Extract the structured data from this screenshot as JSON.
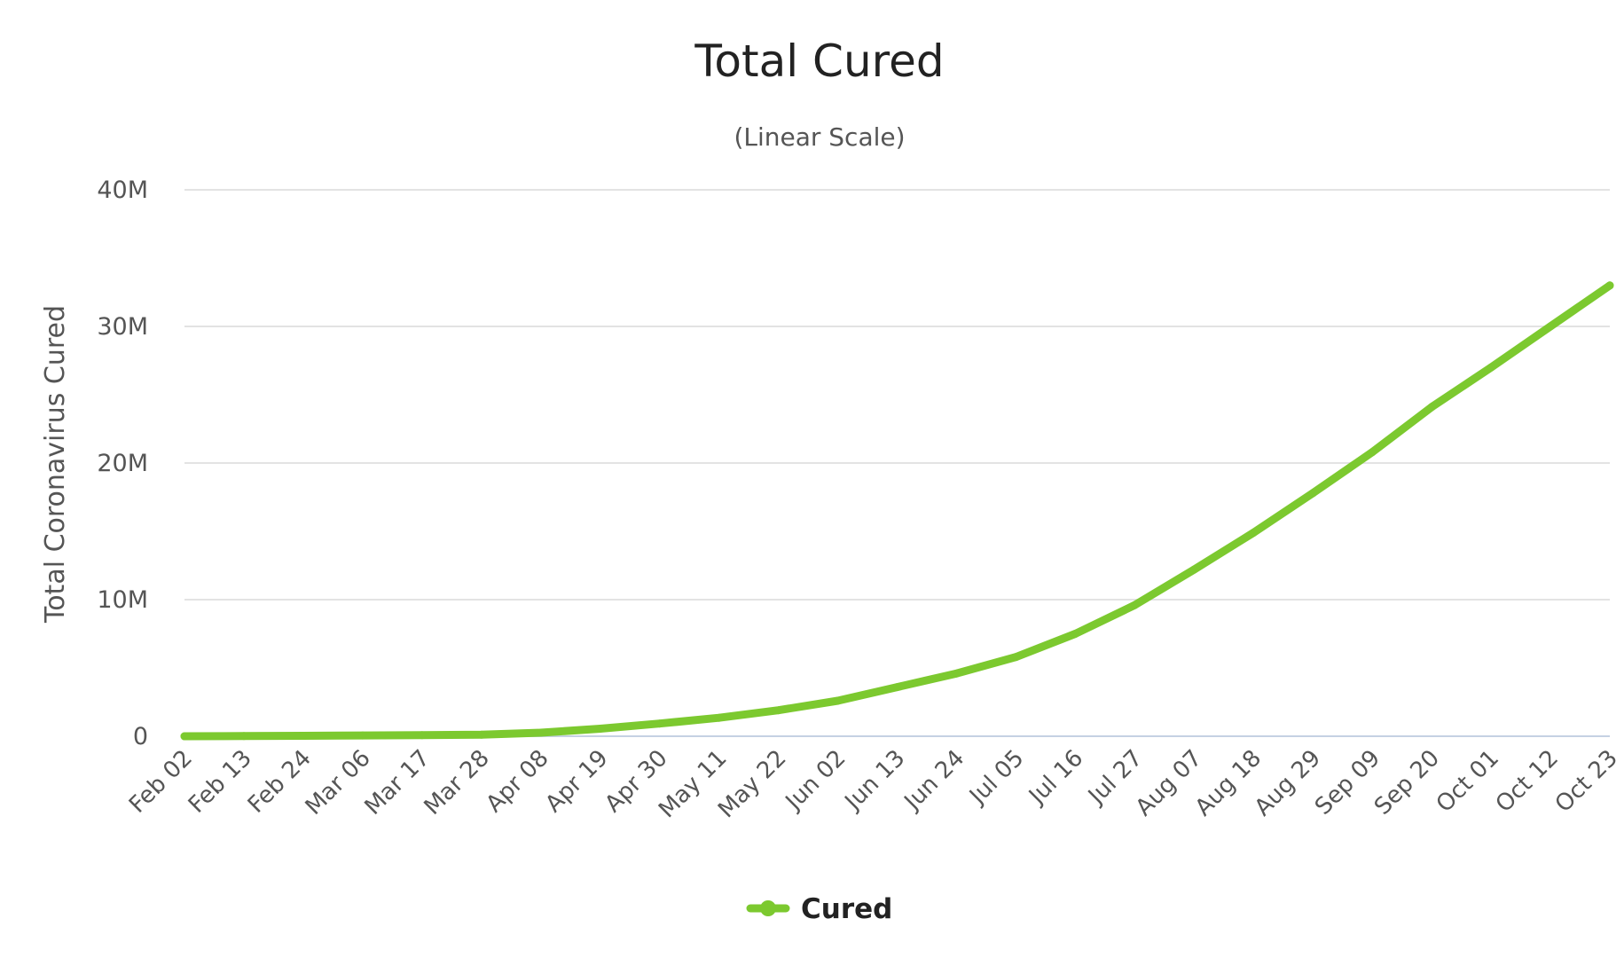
{
  "colors": {
    "series": "#7cc92f",
    "grid": "#e3e3e3",
    "axis": "#c5d1e3",
    "text": "#555555"
  },
  "chart_data": {
    "type": "line",
    "title": "Total Cured",
    "subtitle": "(Linear Scale)",
    "ylabel": "Total Coronavirus Cured",
    "xlabel": "",
    "ylim": [
      0,
      40000000
    ],
    "yticks": [
      {
        "value": 0,
        "label": "0"
      },
      {
        "value": 10000000,
        "label": "10M"
      },
      {
        "value": 20000000,
        "label": "20M"
      },
      {
        "value": 30000000,
        "label": "30M"
      },
      {
        "value": 40000000,
        "label": "40M"
      }
    ],
    "categories": [
      "Feb 02",
      "Feb 13",
      "Feb 24",
      "Mar 06",
      "Mar 17",
      "Mar 28",
      "Apr 08",
      "Apr 19",
      "Apr 30",
      "May 11",
      "May 22",
      "Jun 02",
      "Jun 13",
      "Jun 24",
      "Jul 05",
      "Jul 16",
      "Jul 27",
      "Aug 07",
      "Aug 18",
      "Aug 29",
      "Sep 09",
      "Sep 20",
      "Oct 01",
      "Oct 12",
      "Oct 23"
    ],
    "grid": true,
    "legend": {
      "position": "bottom-center",
      "entries": [
        "Cured"
      ]
    },
    "series": [
      {
        "name": "Cured",
        "color": "#7cc92f",
        "values": [
          0,
          10000,
          30000,
          60000,
          80000,
          110000,
          260000,
          550000,
          930000,
          1350000,
          1900000,
          2600000,
          3600000,
          4600000,
          5800000,
          7500000,
          9600000,
          12200000,
          14900000,
          17800000,
          20800000,
          24100000,
          27000000,
          30000000,
          33000000
        ]
      }
    ]
  }
}
